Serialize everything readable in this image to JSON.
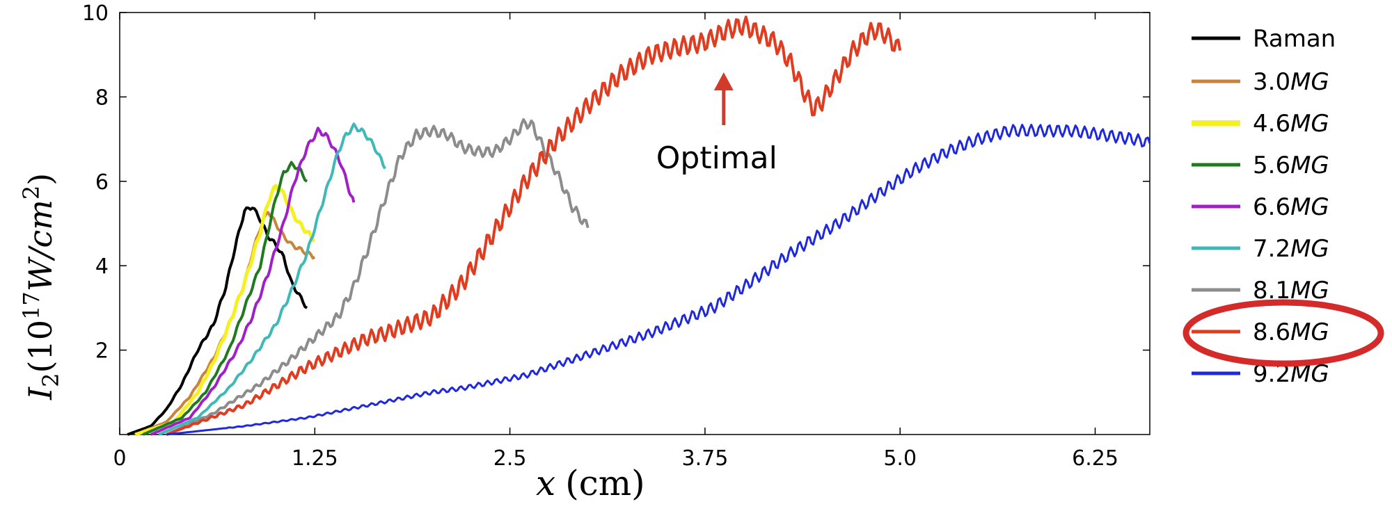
{
  "chart_data": {
    "type": "line",
    "xlabel_var": "x",
    "xlabel_unit": "(cm)",
    "ylabel_prefix": "I",
    "ylabel_sub": "2",
    "ylabel_rest": "(10",
    "ylabel_sup": "17",
    "ylabel_unit": "W/cm",
    "ylabel_sup2": "2",
    "ylabel_close": ")",
    "xlim": [
      0,
      6.6
    ],
    "ylim": [
      0,
      10
    ],
    "xticks": [
      {
        "value": 0,
        "label": "0"
      },
      {
        "value": 1.25,
        "label": "1.25"
      },
      {
        "value": 2.5,
        "label": "2.5"
      },
      {
        "value": 3.75,
        "label": "3.75"
      },
      {
        "value": 5.0,
        "label": "5.0"
      },
      {
        "value": 6.25,
        "label": "6.25"
      }
    ],
    "yticks": [
      {
        "value": 2,
        "label": "2"
      },
      {
        "value": 4,
        "label": "4"
      },
      {
        "value": 6,
        "label": "6"
      },
      {
        "value": 8,
        "label": "8"
      },
      {
        "value": 10,
        "label": "10"
      }
    ],
    "annotation": {
      "text": "Optimal",
      "x": 3.87,
      "y": 8.4
    },
    "highlight_series": "8.6MG",
    "series": [
      {
        "name": "Raman",
        "color": "#000000",
        "width": 4,
        "noise": 0.05,
        "x": [
          0.05,
          0.2,
          0.3,
          0.4,
          0.5,
          0.6,
          0.68,
          0.75,
          0.8,
          0.85,
          0.9,
          0.95,
          1.0,
          1.05,
          1.1,
          1.2
        ],
        "y": [
          0,
          0.2,
          0.6,
          1.2,
          2.0,
          2.6,
          3.5,
          4.6,
          5.3,
          5.4,
          5.1,
          4.7,
          4.5,
          4.2,
          3.6,
          3.0
        ]
      },
      {
        "name": "3.0MG",
        "color": "#c8843c",
        "width": 4,
        "noise": 0.05,
        "x": [
          0.1,
          0.3,
          0.45,
          0.6,
          0.7,
          0.8,
          0.85,
          0.9,
          0.95,
          1.0,
          1.05,
          1.1,
          1.15,
          1.2,
          1.25
        ],
        "y": [
          0,
          0.3,
          0.9,
          1.8,
          2.6,
          3.6,
          4.3,
          4.9,
          5.3,
          5.0,
          4.7,
          4.5,
          4.4,
          4.3,
          4.2
        ]
      },
      {
        "name": "4.6MG",
        "color": "#f5f020",
        "width": 5,
        "noise": 0.06,
        "x": [
          0.1,
          0.35,
          0.5,
          0.6,
          0.7,
          0.8,
          0.9,
          0.95,
          1.0,
          1.05,
          1.1,
          1.15,
          1.2,
          1.25
        ],
        "y": [
          0,
          0.3,
          1.0,
          1.7,
          2.6,
          3.6,
          4.8,
          5.5,
          5.9,
          5.7,
          5.3,
          5.0,
          4.8,
          4.6
        ]
      },
      {
        "name": "5.6MG",
        "color": "#1e7a1e",
        "width": 4,
        "noise": 0.05,
        "x": [
          0.15,
          0.4,
          0.55,
          0.7,
          0.8,
          0.9,
          0.95,
          1.0,
          1.05,
          1.1,
          1.15,
          1.2
        ],
        "y": [
          0,
          0.4,
          1.0,
          2.0,
          3.0,
          4.0,
          4.8,
          5.6,
          6.2,
          6.4,
          6.3,
          6.0
        ]
      },
      {
        "name": "6.6MG",
        "color": "#a020c8",
        "width": 4,
        "noise": 0.06,
        "x": [
          0.2,
          0.45,
          0.6,
          0.75,
          0.85,
          0.95,
          1.05,
          1.12,
          1.2,
          1.27,
          1.32,
          1.37,
          1.42,
          1.47,
          1.5
        ],
        "y": [
          0,
          0.4,
          1.1,
          2.0,
          2.8,
          3.8,
          5.0,
          6.0,
          6.8,
          7.2,
          7.1,
          6.8,
          6.4,
          5.8,
          5.5
        ]
      },
      {
        "name": "7.2MG",
        "color": "#40b8b8",
        "width": 4,
        "noise": 0.06,
        "x": [
          0.25,
          0.5,
          0.7,
          0.85,
          1.0,
          1.1,
          1.2,
          1.3,
          1.4,
          1.45,
          1.5,
          1.55,
          1.6,
          1.65,
          1.7
        ],
        "y": [
          0,
          0.4,
          1.1,
          1.8,
          2.6,
          3.4,
          4.3,
          5.5,
          6.7,
          7.1,
          7.3,
          7.2,
          7.0,
          6.7,
          6.3
        ]
      },
      {
        "name": "8.1MG",
        "color": "#8c8c8c",
        "width": 4,
        "noise": 0.12,
        "x": [
          0.3,
          0.6,
          0.9,
          1.1,
          1.25,
          1.4,
          1.5,
          1.6,
          1.7,
          1.8,
          1.9,
          2.0,
          2.1,
          2.2,
          2.3,
          2.4,
          2.5,
          2.6,
          2.65,
          2.7,
          2.8,
          2.9,
          3.0
        ],
        "y": [
          0,
          0.5,
          1.2,
          1.8,
          2.3,
          2.8,
          3.5,
          4.5,
          5.6,
          6.6,
          7.1,
          7.2,
          7.1,
          6.8,
          6.7,
          6.7,
          7.0,
          7.4,
          7.3,
          6.9,
          6.2,
          5.4,
          4.9
        ]
      },
      {
        "name": "8.6MG",
        "color": "#e03c20",
        "width": 4,
        "noise": 0.22,
        "x": [
          0.3,
          0.8,
          1.2,
          1.6,
          1.7,
          2.0,
          2.2,
          2.4,
          2.6,
          2.8,
          3.0,
          3.2,
          3.4,
          3.6,
          3.75,
          3.9,
          4.0,
          4.1,
          4.2,
          4.3,
          4.4,
          4.45,
          4.5,
          4.6,
          4.7,
          4.8,
          4.85,
          4.9,
          5.0
        ],
        "y": [
          0,
          0.7,
          1.6,
          2.3,
          2.4,
          2.8,
          3.6,
          4.8,
          6.0,
          7.0,
          7.8,
          8.5,
          9.0,
          9.2,
          9.3,
          9.6,
          9.7,
          9.5,
          9.3,
          8.8,
          8.0,
          7.7,
          7.9,
          8.5,
          9.1,
          9.5,
          9.6,
          9.5,
          9.1
        ]
      },
      {
        "name": "9.2MG",
        "color": "#1e28dc",
        "width": 3,
        "noise": 0.14,
        "x": [
          0.3,
          0.8,
          1.2,
          1.6,
          2.0,
          2.2,
          2.6,
          3.0,
          3.4,
          3.8,
          4.0,
          4.3,
          4.6,
          4.9,
          5.1,
          5.3,
          5.5,
          5.7,
          5.9,
          6.1,
          6.3,
          6.5,
          6.6
        ],
        "y": [
          0,
          0.2,
          0.4,
          0.7,
          1.0,
          1.1,
          1.4,
          1.9,
          2.4,
          3.0,
          3.5,
          4.3,
          5.0,
          5.8,
          6.3,
          6.7,
          7.0,
          7.2,
          7.2,
          7.2,
          7.1,
          7.0,
          6.9
        ]
      }
    ]
  },
  "legend": {
    "items": [
      {
        "label": "Raman",
        "italic": false
      },
      {
        "label": "3.0",
        "unit": "MG",
        "italic": true
      },
      {
        "label": "4.6",
        "unit": "MG",
        "italic": true
      },
      {
        "label": "5.6",
        "unit": "MG",
        "italic": true
      },
      {
        "label": "6.6",
        "unit": "MG",
        "italic": true
      },
      {
        "label": "7.2",
        "unit": "MG",
        "italic": true
      },
      {
        "label": "8.1",
        "unit": "MG",
        "italic": true
      },
      {
        "label": "8.6",
        "unit": "MG",
        "italic": true
      },
      {
        "label": "9.2",
        "unit": "MG",
        "italic": true
      }
    ],
    "highlight_color": "#d42a2a"
  }
}
